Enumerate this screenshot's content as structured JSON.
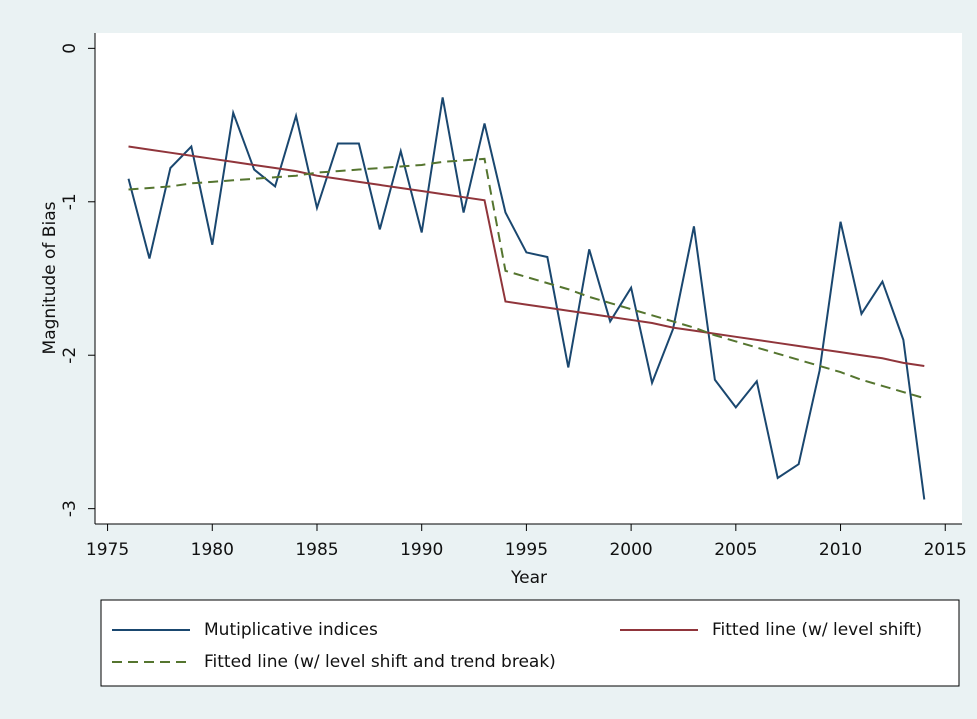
{
  "chart_data": {
    "type": "line",
    "x_label": "Year",
    "y_label": "Magnitude of Bias",
    "x": [
      1976,
      1977,
      1978,
      1979,
      1980,
      1981,
      1982,
      1983,
      1984,
      1985,
      1986,
      1987,
      1988,
      1989,
      1990,
      1991,
      1992,
      1993,
      1994,
      1995,
      1996,
      1997,
      1998,
      1999,
      2000,
      2001,
      2002,
      2003,
      2004,
      2005,
      2006,
      2007,
      2008,
      2009,
      2010,
      2011,
      2012,
      2013,
      2014
    ],
    "series": [
      {
        "name": "Mutiplicative indices",
        "color": "#1a476f",
        "style": "solid",
        "values": [
          -0.85,
          -1.37,
          -0.78,
          -0.64,
          -1.28,
          -0.42,
          -0.79,
          -0.9,
          -0.44,
          -1.04,
          -0.62,
          -0.62,
          -1.18,
          -0.67,
          -1.2,
          -0.32,
          -1.07,
          -0.49,
          -1.07,
          -1.33,
          -1.36,
          -2.08,
          -1.31,
          -1.78,
          -1.56,
          -2.18,
          -1.83,
          -1.16,
          -2.16,
          -2.34,
          -2.17,
          -2.8,
          -2.71,
          -2.1,
          -1.13,
          -1.73,
          -1.52,
          -1.9,
          -2.94
        ]
      },
      {
        "name": "Fitted line (w/ level shift)",
        "color": "#90353b",
        "style": "solid",
        "values": [
          -0.64,
          -0.66,
          -0.68,
          -0.7,
          -0.72,
          -0.74,
          -0.76,
          -0.78,
          -0.8,
          -0.83,
          -0.85,
          -0.87,
          -0.89,
          -0.91,
          -0.93,
          -0.95,
          -0.97,
          -0.99,
          -1.65,
          -1.67,
          -1.69,
          -1.71,
          -1.73,
          -1.75,
          -1.77,
          -1.79,
          -1.82,
          -1.84,
          -1.86,
          -1.88,
          -1.9,
          -1.92,
          -1.94,
          -1.96,
          -1.98,
          -2.0,
          -2.02,
          -2.05,
          -2.07
        ]
      },
      {
        "name": "Fitted line (w/ level shift and trend break)",
        "color": "#55752f",
        "style": "dashed",
        "values": [
          -0.92,
          -0.91,
          -0.9,
          -0.88,
          -0.87,
          -0.86,
          -0.85,
          -0.84,
          -0.83,
          -0.81,
          -0.8,
          -0.79,
          -0.78,
          -0.77,
          -0.76,
          -0.74,
          -0.73,
          -0.72,
          -1.45,
          -1.49,
          -1.53,
          -1.57,
          -1.62,
          -1.66,
          -1.7,
          -1.74,
          -1.78,
          -1.82,
          -1.87,
          -1.91,
          -1.95,
          -1.99,
          -2.03,
          -2.07,
          -2.11,
          -2.16,
          -2.2,
          -2.24,
          -2.28
        ]
      }
    ],
    "xlim": [
      1974.4,
      2015.8
    ],
    "xticks": [
      1975,
      1980,
      1985,
      1990,
      1995,
      2000,
      2005,
      2010,
      2015
    ],
    "ylim": [
      -3.1,
      0.1
    ],
    "yticks": [
      0,
      -1,
      -2,
      -3
    ],
    "grid": false,
    "legend": "bottom"
  }
}
